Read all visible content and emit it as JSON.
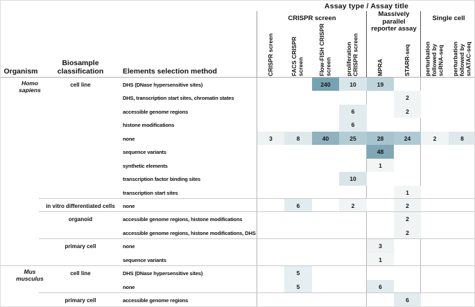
{
  "figure_display": {
    "title": "Assay type  /  Assay title",
    "groups": [
      "CRISPR screen",
      "Massively parallel\nreporter assay",
      "Single cell"
    ],
    "columns": [
      "CRISPR screen",
      "FACS CRISPR\nscreen",
      "Flow-FISH CRISPR\nscreen",
      "proliferation\nCRISPR screen",
      "MPRA",
      "STARR-seq",
      "perturbation\nfollowed by\nscRNA-seq",
      "perturbation\nfollowed by\nsnATAC-seq"
    ],
    "left_headers": {
      "organism": "Organism",
      "biosample": "Biosample\nclassification",
      "method": "Elements selection method"
    },
    "organism_display": {
      "Homo sapiens": "Homo\nsapiens",
      "Mus musculus": "Mus\nmusculus"
    }
  },
  "chart_data": {
    "type": "heatmap",
    "title": "Assay type / Assay title",
    "column_groups": [
      {
        "label": "CRISPR screen",
        "columns": [
          "CRISPR screen",
          "FACS CRISPR screen",
          "Flow-FISH CRISPR screen",
          "proliferation CRISPR screen"
        ]
      },
      {
        "label": "Massively parallel reporter assay",
        "columns": [
          "MPRA",
          "STARR-seq"
        ]
      },
      {
        "label": "Single cell",
        "columns": [
          "perturbation followed by scRNA-seq",
          "perturbation followed by snATAC-seq"
        ]
      }
    ],
    "columns": [
      "CRISPR screen",
      "FACS CRISPR screen",
      "Flow-FISH CRISPR screen",
      "proliferation CRISPR screen",
      "MPRA",
      "STARR-seq",
      "perturbation followed by scRNA-seq",
      "perturbation followed by snATAC-seq"
    ],
    "row_headers": [
      "Organism",
      "Biosample classification",
      "Elements selection method"
    ],
    "rows": [
      {
        "organism": "Homo sapiens",
        "biosample": "cell line",
        "method": "DHS (DNase hypersensitive sites)",
        "cells": {
          "2": 240,
          "3": 10,
          "4": 19
        }
      },
      {
        "method": "DHS, transcription start sites, chromatin states",
        "cells": {
          "5": 2
        }
      },
      {
        "method": "accessible genome regions",
        "cells": {
          "3": 6,
          "5": 2
        }
      },
      {
        "method": "histone modifications",
        "cells": {
          "3": 6
        }
      },
      {
        "method": "none",
        "cells": {
          "0": 3,
          "1": 8,
          "2": 40,
          "3": 25,
          "4": 28,
          "5": 24,
          "6": 2,
          "7": 8
        }
      },
      {
        "method": "sequence variants",
        "cells": {
          "4": 48
        }
      },
      {
        "method": "synthetic elements",
        "cells": {
          "4": 1
        }
      },
      {
        "method": "transcription factor binding sites",
        "cells": {
          "3": 10
        }
      },
      {
        "method": "transcription start sites",
        "cells": {
          "5": 1
        }
      },
      {
        "biosample": "in vitro differentiated cells",
        "sep": "minor",
        "method": "none",
        "cells": {
          "1": 6,
          "3": 2,
          "5": 2
        }
      },
      {
        "biosample": "organoid",
        "sep": "minor",
        "method": "accessible genome regions, histone modifications",
        "cells": {
          "5": 2
        }
      },
      {
        "method": "accessible genome regions, histone modifications, DHS",
        "cells": {
          "5": 2
        }
      },
      {
        "biosample": "primary cell",
        "sep": "minor",
        "method": "none",
        "cells": {
          "4": 3
        }
      },
      {
        "method": "sequence variants",
        "cells": {
          "4": 1
        }
      },
      {
        "organism": "Mus musculus",
        "biosample": "cell line",
        "sep": "major",
        "method": "DHS (DNase hypersensitive sites)",
        "cells": {
          "1": 5
        }
      },
      {
        "method": "none",
        "cells": {
          "1": 5,
          "4": 6
        }
      },
      {
        "biosample": "primary cell",
        "sep": "minor",
        "method": "accessible genome regions",
        "cells": {
          "5": 6
        }
      }
    ],
    "value_colors": {
      "1": "#f3f5f5",
      "2": "#f1f4f5",
      "3": "#eef2f3",
      "5": "#e5eef0",
      "6": "#e2ecee",
      "8": "#dfe9ec",
      "10": "#d9e6e9",
      "19": "#bed4da",
      "24": "#aecad2",
      "25": "#b2ccd4",
      "28": "#a5c4cd",
      "40": "#8fb2bd",
      "48": "#7fa8b4",
      "240": "#76a3b1"
    },
    "legend": "cell shading encodes count (light to dark teal with increasing value)"
  }
}
